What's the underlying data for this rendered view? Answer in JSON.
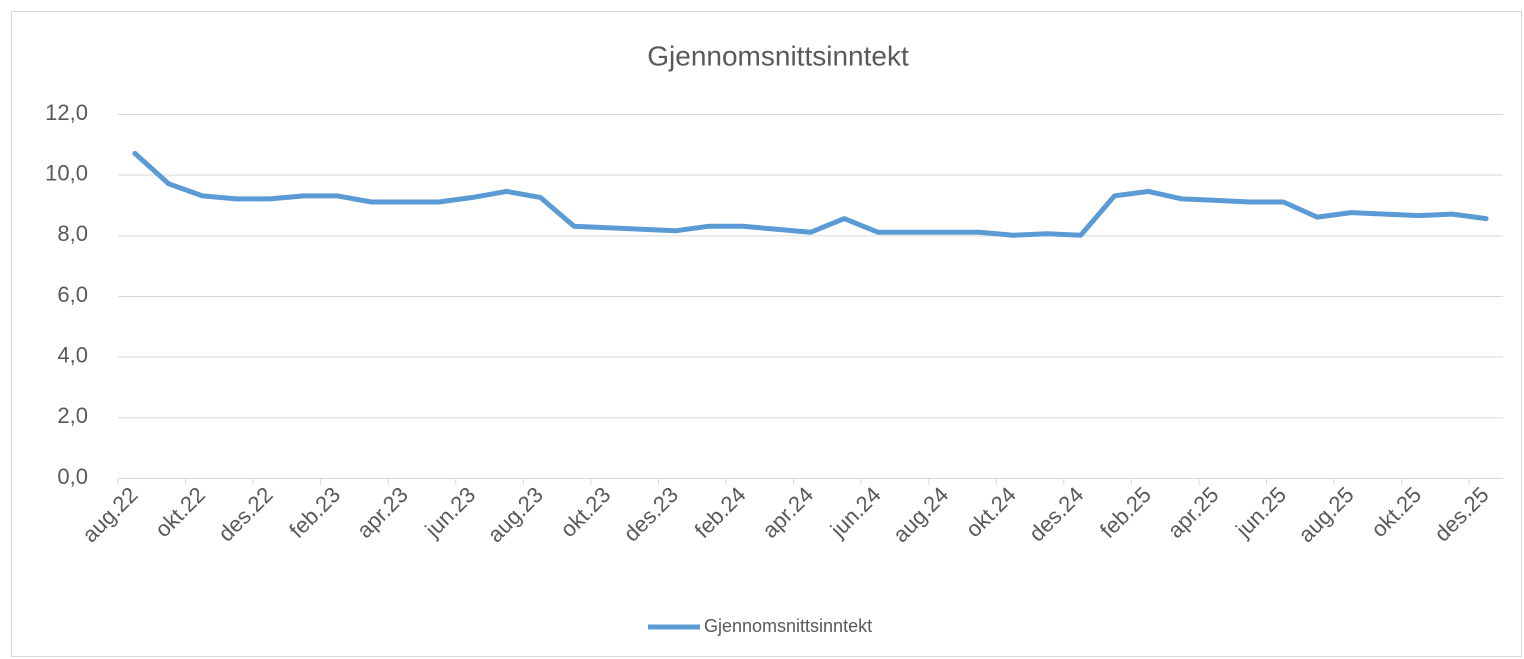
{
  "chart_data": {
    "type": "line",
    "title": "Gjennomsnittsinntekt",
    "categories": [
      "aug.22",
      null,
      "okt.22",
      null,
      "des.22",
      null,
      "feb.23",
      null,
      "apr.23",
      null,
      "jun.23",
      null,
      "aug.23",
      null,
      "okt.23",
      null,
      "des.23",
      null,
      "feb.24",
      null,
      "apr.24",
      null,
      "jun.24",
      null,
      "aug.24",
      null,
      "okt.24",
      null,
      "des.24",
      null,
      "feb.25",
      null,
      "apr.25",
      null,
      "jun.25",
      null,
      "aug.25",
      null,
      "okt.25",
      null,
      "des.25"
    ],
    "series": [
      {
        "name": "Gjennomsnittsinntekt",
        "color": "#5b9bd5",
        "values": [
          10.7,
          9.7,
          9.3,
          9.2,
          9.2,
          9.3,
          9.3,
          9.1,
          9.1,
          9.1,
          9.25,
          9.45,
          9.25,
          8.3,
          8.25,
          8.2,
          8.15,
          8.3,
          8.3,
          8.2,
          8.1,
          8.55,
          8.1,
          8.1,
          8.1,
          8.1,
          8.0,
          8.05,
          8.0,
          9.3,
          9.45,
          9.2,
          9.15,
          9.1,
          9.1,
          8.6,
          8.75,
          8.7,
          8.65,
          8.7,
          8.55
        ]
      }
    ],
    "ylim": [
      0,
      12
    ],
    "yticks": [
      {
        "value": 0,
        "label": "0,0"
      },
      {
        "value": 2,
        "label": "2,0"
      },
      {
        "value": 4,
        "label": "4,0"
      },
      {
        "value": 6,
        "label": "6,0"
      },
      {
        "value": 8,
        "label": "8,0"
      },
      {
        "value": 10,
        "label": "10,0"
      },
      {
        "value": 12,
        "label": "12,0"
      }
    ],
    "grid": true,
    "legend": "bottom"
  }
}
